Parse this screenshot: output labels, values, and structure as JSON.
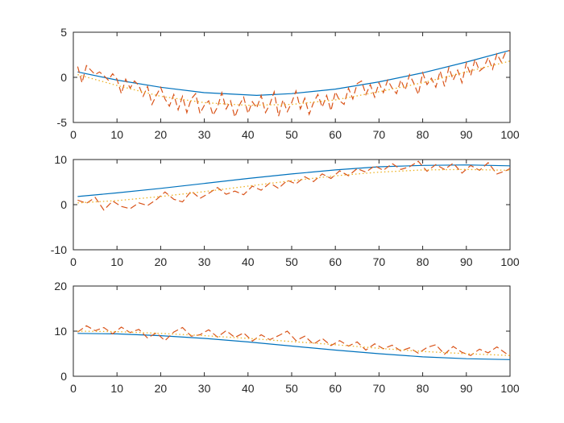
{
  "colors": {
    "series_smooth": "#0072BD",
    "series_noisy": "#D95319",
    "series_trend": "#EDB120",
    "axes": "#262626"
  },
  "chart_data": [
    {
      "type": "line",
      "xlim": [
        0,
        100
      ],
      "ylim": [
        -5,
        5
      ],
      "xticks": [
        0,
        10,
        20,
        30,
        40,
        50,
        60,
        70,
        80,
        90,
        100
      ],
      "yticks": [
        -5,
        0,
        5
      ],
      "grid": false,
      "series": [
        {
          "style": "solid",
          "color": "#0072BD",
          "x": [
            1,
            10,
            20,
            30,
            42,
            50,
            60,
            70,
            80,
            90,
            100
          ],
          "y": [
            0.6,
            -0.3,
            -1.1,
            -1.7,
            -2.0,
            -1.8,
            -1.3,
            -0.5,
            0.5,
            1.7,
            3.0
          ]
        },
        {
          "style": "dashed",
          "color": "#D95319",
          "x": [
            1,
            2,
            3,
            4,
            5,
            6,
            7,
            8,
            9,
            10,
            11,
            12,
            13,
            14,
            15,
            16,
            17,
            18,
            19,
            20,
            21,
            22,
            23,
            24,
            25,
            26,
            27,
            28,
            29,
            30,
            31,
            32,
            33,
            34,
            35,
            36,
            37,
            38,
            39,
            40,
            41,
            42,
            43,
            44,
            45,
            46,
            47,
            48,
            49,
            50,
            51,
            52,
            53,
            54,
            55,
            56,
            57,
            58,
            59,
            60,
            61,
            62,
            63,
            64,
            65,
            66,
            67,
            68,
            69,
            70,
            71,
            72,
            73,
            74,
            75,
            76,
            77,
            78,
            79,
            80,
            81,
            82,
            83,
            84,
            85,
            86,
            87,
            88,
            89,
            90,
            91,
            92,
            93,
            94,
            95,
            96,
            97,
            98,
            99,
            100
          ],
          "y": [
            1.2,
            -0.6,
            1.3,
            0.8,
            0.3,
            0.6,
            0.2,
            -0.3,
            0.4,
            -0.2,
            -1.8,
            -0.2,
            -1.2,
            -0.4,
            -0.9,
            -2.1,
            -1.0,
            -3.0,
            -2.0,
            -1.1,
            -2.4,
            -3.2,
            -1.9,
            -3.6,
            -2.1,
            -3.9,
            -2.4,
            -1.8,
            -4.0,
            -3.1,
            -2.6,
            -4.2,
            -3.3,
            -1.7,
            -3.5,
            -2.6,
            -4.4,
            -3.1,
            -2.2,
            -4.0,
            -2.7,
            -3.4,
            -2.0,
            -3.9,
            -3.0,
            -1.6,
            -4.3,
            -2.5,
            -3.8,
            -2.8,
            -1.5,
            -3.5,
            -2.3,
            -4.1,
            -2.8,
            -1.9,
            -3.3,
            -2.0,
            -3.7,
            -1.6,
            -2.6,
            -3.0,
            -1.2,
            -2.4,
            -0.7,
            -0.4,
            -1.9,
            -0.8,
            -2.2,
            -0.6,
            -1.7,
            -0.3,
            -1.2,
            -1.8,
            -0.3,
            -1.4,
            0.3,
            -0.7,
            -1.9,
            0.5,
            -0.8,
            -0.1,
            -1.1,
            0.7,
            -1.0,
            1.1,
            -0.3,
            0.8,
            -0.6,
            1.6,
            0.2,
            2.0,
            0.7,
            1.1,
            2.2,
            0.9,
            2.6,
            1.7,
            2.8,
            3.0
          ]
        },
        {
          "style": "dotted",
          "color": "#EDB120",
          "x": [
            1,
            10,
            20,
            30,
            40,
            50,
            60,
            70,
            80,
            90,
            100
          ],
          "y": [
            0.3,
            -0.9,
            -2.1,
            -2.8,
            -3.1,
            -3.0,
            -2.5,
            -1.6,
            -0.6,
            0.6,
            1.8
          ]
        }
      ]
    },
    {
      "type": "line",
      "xlim": [
        0,
        100
      ],
      "ylim": [
        -10,
        10
      ],
      "xticks": [
        0,
        10,
        20,
        30,
        40,
        50,
        60,
        70,
        80,
        90,
        100
      ],
      "yticks": [
        -10,
        0,
        10
      ],
      "grid": false,
      "series": [
        {
          "style": "solid",
          "color": "#0072BD",
          "x": [
            1,
            10,
            20,
            30,
            40,
            50,
            60,
            70,
            80,
            90,
            100
          ],
          "y": [
            1.8,
            2.6,
            3.6,
            4.7,
            5.8,
            6.8,
            7.7,
            8.4,
            8.7,
            8.8,
            8.6
          ]
        },
        {
          "style": "dashed",
          "color": "#D95319",
          "x": [
            1,
            3,
            5,
            7,
            9,
            11,
            13,
            15,
            17,
            19,
            21,
            23,
            25,
            27,
            29,
            31,
            33,
            35,
            37,
            39,
            41,
            43,
            45,
            47,
            49,
            51,
            53,
            55,
            57,
            59,
            61,
            63,
            65,
            67,
            69,
            71,
            73,
            75,
            77,
            79,
            81,
            83,
            85,
            87,
            89,
            91,
            93,
            95,
            97,
            99,
            100
          ],
          "y": [
            1.0,
            0.3,
            1.6,
            -1.2,
            0.8,
            -0.4,
            -0.9,
            0.4,
            -0.2,
            1.1,
            2.8,
            1.2,
            0.6,
            3.0,
            1.4,
            2.5,
            3.8,
            2.3,
            3.0,
            2.2,
            4.1,
            3.2,
            4.8,
            3.6,
            5.4,
            4.6,
            6.2,
            5.1,
            6.8,
            5.8,
            7.5,
            6.4,
            8.0,
            7.2,
            8.6,
            7.6,
            9.1,
            7.8,
            8.4,
            9.6,
            7.4,
            8.9,
            7.8,
            9.2,
            7.0,
            8.7,
            7.6,
            9.3,
            6.8,
            7.5,
            8.0
          ]
        },
        {
          "style": "dotted",
          "color": "#EDB120",
          "x": [
            1,
            10,
            20,
            30,
            40,
            50,
            60,
            70,
            80,
            90,
            100
          ],
          "y": [
            0.4,
            0.9,
            1.8,
            2.9,
            4.1,
            5.3,
            6.4,
            7.2,
            7.7,
            7.8,
            7.6
          ]
        }
      ]
    },
    {
      "type": "line",
      "xlim": [
        0,
        100
      ],
      "ylim": [
        0,
        20
      ],
      "xticks": [
        0,
        10,
        20,
        30,
        40,
        50,
        60,
        70,
        80,
        90,
        100
      ],
      "yticks": [
        0,
        10,
        20
      ],
      "grid": false,
      "series": [
        {
          "style": "solid",
          "color": "#0072BD",
          "x": [
            1,
            10,
            20,
            30,
            40,
            50,
            60,
            70,
            80,
            90,
            100
          ],
          "y": [
            9.5,
            9.4,
            9.0,
            8.4,
            7.6,
            6.7,
            5.8,
            5.0,
            4.3,
            3.9,
            3.7
          ]
        },
        {
          "style": "dashed",
          "color": "#D95319",
          "x": [
            1,
            3,
            5,
            7,
            9,
            11,
            13,
            15,
            17,
            19,
            21,
            23,
            25,
            27,
            29,
            31,
            33,
            35,
            37,
            39,
            41,
            43,
            45,
            47,
            49,
            51,
            53,
            55,
            57,
            59,
            61,
            63,
            65,
            67,
            69,
            71,
            73,
            75,
            77,
            79,
            81,
            83,
            85,
            87,
            89,
            91,
            93,
            95,
            97,
            99,
            100
          ],
          "y": [
            9.8,
            11.2,
            10.1,
            10.8,
            9.4,
            10.9,
            9.7,
            10.4,
            8.5,
            9.6,
            7.9,
            9.8,
            10.8,
            8.9,
            9.2,
            10.3,
            8.7,
            10.1,
            8.6,
            9.6,
            7.8,
            9.2,
            8.1,
            9.0,
            10.0,
            7.9,
            8.9,
            7.1,
            8.4,
            6.8,
            7.9,
            6.7,
            7.6,
            5.8,
            7.2,
            6.1,
            6.9,
            5.6,
            6.3,
            5.1,
            6.4,
            7.0,
            4.9,
            6.6,
            5.3,
            4.6,
            6.0,
            5.2,
            6.5,
            5.1,
            4.6
          ]
        },
        {
          "style": "dotted",
          "color": "#EDB120",
          "x": [
            1,
            10,
            20,
            30,
            40,
            50,
            60,
            70,
            80,
            90,
            100
          ],
          "y": [
            10.0,
            9.9,
            9.5,
            9.0,
            8.4,
            7.7,
            7.0,
            6.2,
            5.5,
            5.0,
            4.6
          ]
        }
      ]
    }
  ]
}
